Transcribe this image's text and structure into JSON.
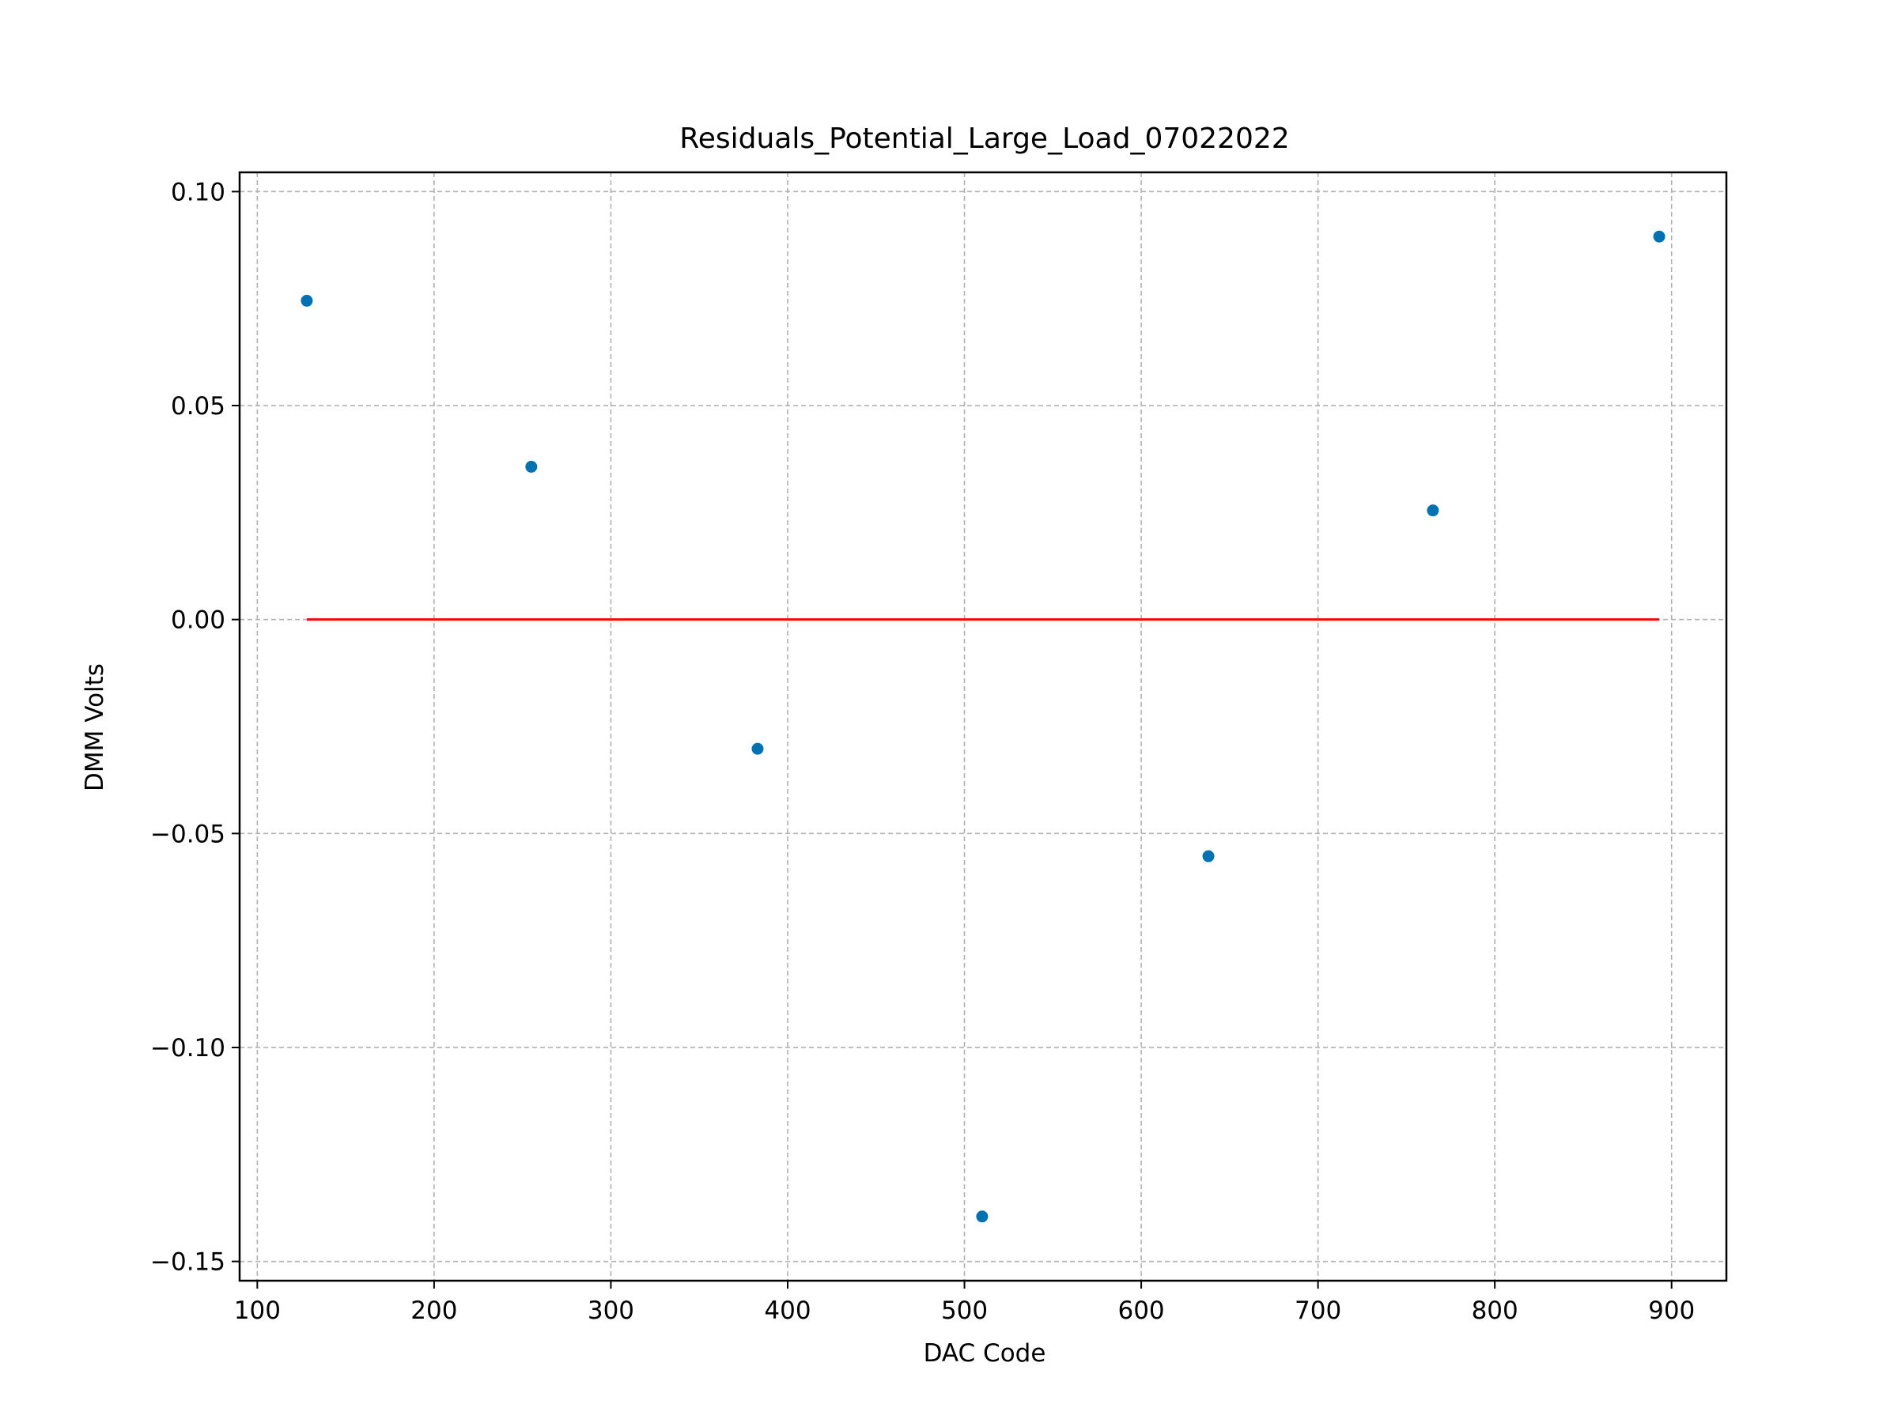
{
  "chart_data": {
    "type": "scatter",
    "title": "Residuals_Potential_Large_Load_07022022",
    "xlabel": "DAC Code",
    "ylabel": "DMM Volts",
    "xlim": [
      90,
      931
    ],
    "ylim": [
      -0.1545,
      0.1045
    ],
    "xticks": [
      100,
      200,
      300,
      400,
      500,
      600,
      700,
      800,
      900
    ],
    "xtick_labels": [
      "100",
      "200",
      "300",
      "400",
      "500",
      "600",
      "700",
      "800",
      "900"
    ],
    "yticks": [
      0.1,
      0.05,
      0.0,
      -0.05,
      -0.1,
      -0.15
    ],
    "ytick_labels": [
      "0.10",
      "0.05",
      "0.00",
      "−0.05",
      "−0.10",
      "−0.15"
    ],
    "grid": true,
    "series": [
      {
        "kind": "scatter",
        "color": "#0072b2",
        "points": [
          {
            "x": 128,
            "y": 0.0745
          },
          {
            "x": 255,
            "y": 0.0357
          },
          {
            "x": 383,
            "y": -0.0302
          },
          {
            "x": 510,
            "y": -0.1395
          },
          {
            "x": 638,
            "y": -0.0553
          },
          {
            "x": 765,
            "y": 0.0255
          },
          {
            "x": 893,
            "y": 0.0895
          }
        ]
      },
      {
        "kind": "line",
        "color": "#ff0000",
        "points": [
          {
            "x": 128,
            "y": 0.0
          },
          {
            "x": 893,
            "y": 0.0
          }
        ]
      }
    ]
  }
}
